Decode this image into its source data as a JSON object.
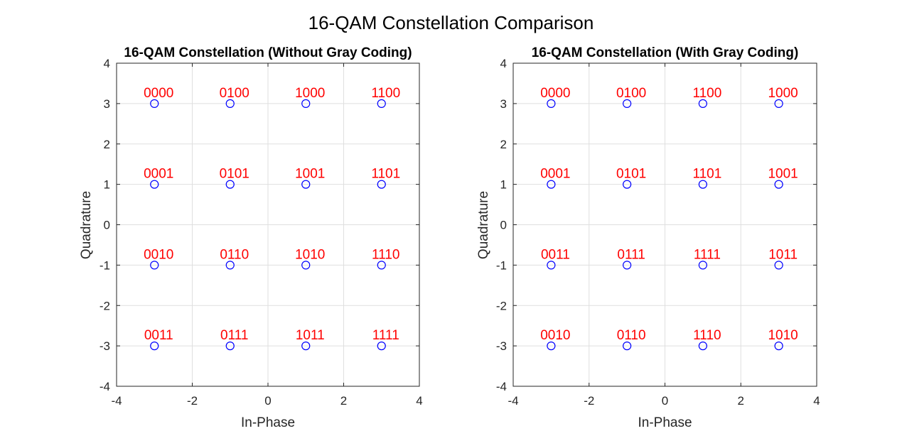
{
  "figure": {
    "title": "16-QAM Constellation Comparison"
  },
  "chart_data": [
    {
      "type": "scatter",
      "title": "16-QAM Constellation (Without Gray Coding)",
      "xlabel": "In-Phase",
      "ylabel": "Quadrature",
      "xlim": [
        -4,
        4
      ],
      "ylim": [
        -4,
        4
      ],
      "xticks": [
        -4,
        -2,
        0,
        2,
        4
      ],
      "yticks": [
        -4,
        -3,
        -2,
        -1,
        0,
        1,
        2,
        3,
        4
      ],
      "grid": true,
      "marker_color": "#0000ff",
      "label_color": "#ff0000",
      "points": [
        {
          "x": -3,
          "y": 3,
          "label": "0000"
        },
        {
          "x": -1,
          "y": 3,
          "label": "0100"
        },
        {
          "x": 1,
          "y": 3,
          "label": "1000"
        },
        {
          "x": 3,
          "y": 3,
          "label": "1100"
        },
        {
          "x": -3,
          "y": 1,
          "label": "0001"
        },
        {
          "x": -1,
          "y": 1,
          "label": "0101"
        },
        {
          "x": 1,
          "y": 1,
          "label": "1001"
        },
        {
          "x": 3,
          "y": 1,
          "label": "1101"
        },
        {
          "x": -3,
          "y": -1,
          "label": "0010"
        },
        {
          "x": -1,
          "y": -1,
          "label": "0110"
        },
        {
          "x": 1,
          "y": -1,
          "label": "1010"
        },
        {
          "x": 3,
          "y": -1,
          "label": "1110"
        },
        {
          "x": -3,
          "y": -3,
          "label": "0011"
        },
        {
          "x": -1,
          "y": -3,
          "label": "0111"
        },
        {
          "x": 1,
          "y": -3,
          "label": "1011"
        },
        {
          "x": 3,
          "y": -3,
          "label": "1111"
        }
      ]
    },
    {
      "type": "scatter",
      "title": "16-QAM Constellation (With Gray Coding)",
      "xlabel": "In-Phase",
      "ylabel": "Quadrature",
      "xlim": [
        -4,
        4
      ],
      "ylim": [
        -4,
        4
      ],
      "xticks": [
        -4,
        -2,
        0,
        2,
        4
      ],
      "yticks": [
        -4,
        -3,
        -2,
        -1,
        0,
        1,
        2,
        3,
        4
      ],
      "grid": true,
      "marker_color": "#0000ff",
      "label_color": "#ff0000",
      "points": [
        {
          "x": -3,
          "y": 3,
          "label": "0000"
        },
        {
          "x": -1,
          "y": 3,
          "label": "0100"
        },
        {
          "x": 1,
          "y": 3,
          "label": "1100"
        },
        {
          "x": 3,
          "y": 3,
          "label": "1000"
        },
        {
          "x": -3,
          "y": 1,
          "label": "0001"
        },
        {
          "x": -1,
          "y": 1,
          "label": "0101"
        },
        {
          "x": 1,
          "y": 1,
          "label": "1101"
        },
        {
          "x": 3,
          "y": 1,
          "label": "1001"
        },
        {
          "x": -3,
          "y": -1,
          "label": "0011"
        },
        {
          "x": -1,
          "y": -1,
          "label": "0111"
        },
        {
          "x": 1,
          "y": -1,
          "label": "1111"
        },
        {
          "x": 3,
          "y": -1,
          "label": "1011"
        },
        {
          "x": -3,
          "y": -3,
          "label": "0010"
        },
        {
          "x": -1,
          "y": -3,
          "label": "0110"
        },
        {
          "x": 1,
          "y": -3,
          "label": "1110"
        },
        {
          "x": 3,
          "y": -3,
          "label": "1010"
        }
      ]
    }
  ]
}
